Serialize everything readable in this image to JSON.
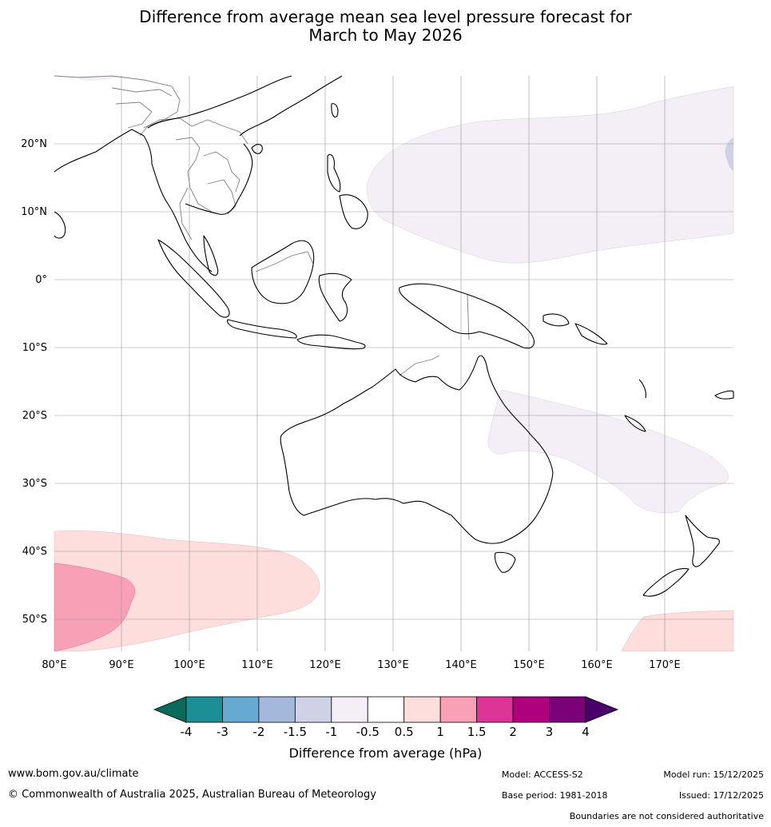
{
  "title_line1": "Difference from average mean sea level pressure forecast for",
  "title_line2": "March to May 2026",
  "map": {
    "lat_labels": [
      "20°N",
      "10°N",
      "0°",
      "10°S",
      "20°S",
      "30°S",
      "40°S",
      "50°S"
    ],
    "lon_labels": [
      "80°E",
      "90°E",
      "100°E",
      "110°E",
      "120°E",
      "130°E",
      "140°E",
      "150°E",
      "160°E",
      "170°E"
    ]
  },
  "legend": {
    "ticks": [
      "-4",
      "-3",
      "-2",
      "-1.5",
      "-1",
      "-0.5",
      "0.5",
      "1",
      "1.5",
      "2",
      "3",
      "4"
    ],
    "colors": [
      "#1b8f95",
      "#66aad1",
      "#a3b8da",
      "#cfd2e6",
      "#f4eef6",
      "#ffffff",
      "#fedddd",
      "#f8a0b6",
      "#dd3497",
      "#ae017e",
      "#7a0177"
    ],
    "low_color": "#0a6b5a",
    "high_color": "#49006a",
    "label": "Difference from average (hPa)"
  },
  "footer": {
    "website": "www.bom.gov.au/climate",
    "copyright": "© Commonwealth of Australia 2025, Australian Bureau of Meteorology",
    "model": "Model: ACCESS-S2",
    "base_period": "Base period: 1981-2018",
    "model_run": "Model run: 15/12/2025",
    "issued": "Issued: 17/12/2025",
    "disclaimer": "Boundaries are not considered authoritative"
  }
}
